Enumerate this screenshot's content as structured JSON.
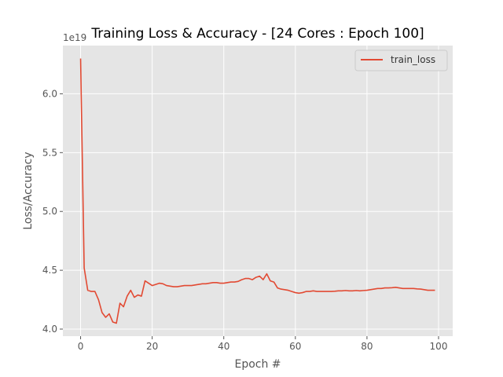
{
  "chart_data": {
    "type": "line",
    "title": "Training Loss & Accuracy - [24 Cores : Epoch 100]",
    "xlabel": "Epoch #",
    "ylabel": "Loss/Accuracy",
    "y_offset_text": "1e19",
    "xlim": [
      -4.95,
      103.95
    ],
    "ylim": [
      3.94,
      6.41
    ],
    "x_ticks": [
      0,
      20,
      40,
      60,
      80,
      100
    ],
    "y_ticks": [
      4.0,
      4.5,
      5.0,
      5.5,
      6.0
    ],
    "x_tick_labels": [
      "0",
      "20",
      "40",
      "60",
      "80",
      "100"
    ],
    "y_tick_labels": [
      "4.0",
      "4.5",
      "5.0",
      "5.5",
      "6.0"
    ],
    "grid": true,
    "legend_position": "top-right",
    "colors": {
      "background": "#e5e5e5",
      "grid": "#ffffff",
      "series": "#e24a33"
    },
    "series": [
      {
        "name": "train_loss",
        "x": [
          0,
          1,
          2,
          3,
          4,
          5,
          6,
          7,
          8,
          9,
          10,
          11,
          12,
          13,
          14,
          15,
          16,
          17,
          18,
          19,
          20,
          21,
          22,
          23,
          24,
          25,
          26,
          27,
          28,
          29,
          30,
          31,
          32,
          33,
          34,
          35,
          36,
          37,
          38,
          39,
          40,
          41,
          42,
          43,
          44,
          45,
          46,
          47,
          48,
          49,
          50,
          51,
          52,
          53,
          54,
          55,
          56,
          57,
          58,
          59,
          60,
          61,
          62,
          63,
          64,
          65,
          66,
          67,
          68,
          69,
          70,
          71,
          72,
          73,
          74,
          75,
          76,
          77,
          78,
          79,
          80,
          81,
          82,
          83,
          84,
          85,
          86,
          87,
          88,
          89,
          90,
          91,
          92,
          93,
          94,
          95,
          96,
          97,
          98,
          99
        ],
        "values": [
          6.3,
          4.52,
          4.33,
          4.32,
          4.32,
          4.25,
          4.14,
          4.1,
          4.13,
          4.06,
          4.05,
          4.22,
          4.19,
          4.28,
          4.33,
          4.27,
          4.29,
          4.28,
          4.41,
          4.39,
          4.37,
          4.38,
          4.39,
          4.385,
          4.37,
          4.365,
          4.36,
          4.36,
          4.365,
          4.37,
          4.37,
          4.37,
          4.375,
          4.38,
          4.385,
          4.385,
          4.39,
          4.395,
          4.395,
          4.39,
          4.39,
          4.395,
          4.4,
          4.4,
          4.405,
          4.42,
          4.43,
          4.43,
          4.42,
          4.44,
          4.45,
          4.42,
          4.47,
          4.41,
          4.4,
          4.35,
          4.34,
          4.335,
          4.33,
          4.32,
          4.31,
          4.305,
          4.31,
          4.32,
          4.32,
          4.325,
          4.32,
          4.32,
          4.32,
          4.32,
          4.32,
          4.322,
          4.325,
          4.325,
          4.328,
          4.325,
          4.325,
          4.328,
          4.325,
          4.328,
          4.33,
          4.335,
          4.34,
          4.345,
          4.345,
          4.35,
          4.35,
          4.352,
          4.355,
          4.35,
          4.345,
          4.345,
          4.345,
          4.345,
          4.342,
          4.34,
          4.335,
          4.33,
          4.33,
          4.33
        ]
      }
    ]
  }
}
